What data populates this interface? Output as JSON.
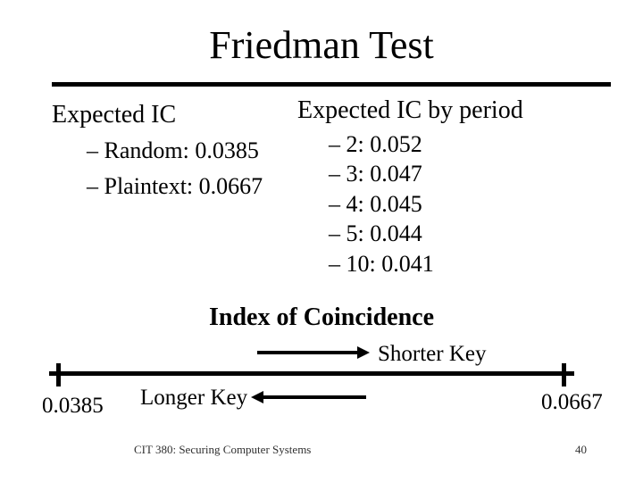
{
  "slide_title": "Friedman Test",
  "left_column": {
    "heading": "Expected IC",
    "items": [
      "– Random: 0.0385",
      "– Plaintext: 0.0667"
    ]
  },
  "right_column": {
    "heading": "Expected IC by period",
    "items": [
      "– 2: 0.052",
      "– 3: 0.047",
      "– 4: 0.045",
      "– 5: 0.044",
      "– 10: 0.041"
    ]
  },
  "diagram": {
    "title": "Index of Coincidence",
    "shorter_key_label": "Shorter Key",
    "longer_key_label": "Longer Key",
    "axis_left_value": "0.0385",
    "axis_right_value": "0.0667"
  },
  "footer": {
    "course": "CIT 380: Securing Computer Systems",
    "page_number": "40"
  },
  "colors": {
    "background": "#ffffff",
    "text": "#000000",
    "footer_text": "#303030"
  }
}
